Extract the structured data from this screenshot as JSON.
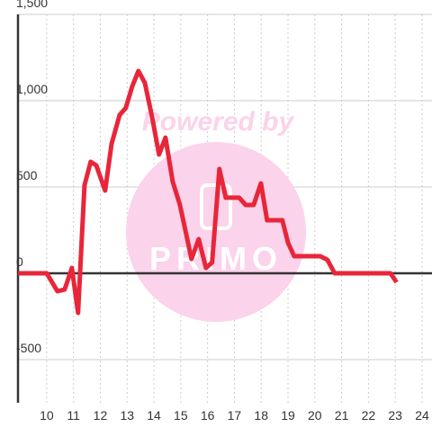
{
  "chart_data": {
    "type": "line",
    "watermark": [
      "Powered by",
      "PRIMO"
    ],
    "x": [
      8.93,
      10,
      10.4,
      10.67,
      10.94,
      11.17,
      11.41,
      11.64,
      11.85,
      12.18,
      12.42,
      12.72,
      12.95,
      13.19,
      13.42,
      13.66,
      13.93,
      14.19,
      14.43,
      14.7,
      14.97,
      15.2,
      15.4,
      15.67,
      15.94,
      16.17,
      16.44,
      16.68,
      16.91,
      17.18,
      17.42,
      17.72,
      17.99,
      18.22,
      18.46,
      18.79,
      19.0,
      19.23,
      19.46,
      20.2,
      20.47,
      20.74,
      22.68,
      22.82,
      23.05
    ],
    "series": [
      {
        "color": "#e8263a",
        "values": [
          0,
          0,
          -104,
          -94,
          31,
          -229,
          510,
          646,
          625,
          479,
          750,
          917,
          958,
          1083,
          1172,
          1104,
          906,
          688,
          786,
          531,
          396,
          229,
          83,
          198,
          31,
          63,
          604,
          438,
          438,
          438,
          396,
          396,
          521,
          307,
          307,
          307,
          177,
          99,
          99,
          99,
          78,
          0,
          0,
          0,
          -52
        ]
      }
    ],
    "xlim": [
      8.93,
      24.37
    ],
    "ylim": [
      -750,
      1500
    ],
    "xticks": [
      10,
      11,
      12,
      13,
      14,
      15,
      16,
      17,
      18,
      19,
      20,
      21,
      22,
      23,
      24
    ],
    "yticks": [
      -500,
      0,
      500,
      {
        "value": 1000,
        "label": "1,000"
      },
      {
        "value": 1500,
        "label": "1,500"
      }
    ],
    "grid": true
  }
}
